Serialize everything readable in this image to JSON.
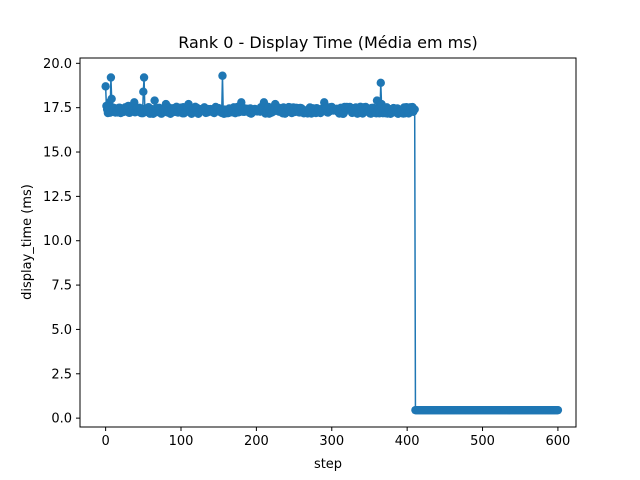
{
  "chart_data": {
    "type": "line",
    "title": "Rank 0 - Display Time (Média em ms)",
    "xlabel": "step",
    "ylabel": "display_time (ms)",
    "xlim": [
      -34,
      624
    ],
    "ylim": [
      -0.5,
      20.3
    ],
    "xticks": [
      0,
      100,
      200,
      300,
      400,
      500,
      600
    ],
    "yticks": [
      0.0,
      2.5,
      5.0,
      7.5,
      10.0,
      12.5,
      15.0,
      17.5,
      20.0
    ],
    "ytick_labels": [
      "0.0",
      "2.5",
      "5.0",
      "7.5",
      "10.0",
      "12.5",
      "15.0",
      "17.5",
      "20.0"
    ],
    "xtick_labels": [
      "0",
      "100",
      "200",
      "300",
      "400",
      "500",
      "600"
    ],
    "grid": false,
    "marker": "circle",
    "series": [
      {
        "color": "#1f77b4",
        "segments": [
          {
            "x_start": 0,
            "x_end": 410,
            "base": 17.35,
            "noise": 0.2
          },
          {
            "x_start": 411,
            "x_end": 600,
            "base": 0.45,
            "noise": 0.0
          }
        ],
        "points": [
          {
            "x": 0,
            "y": 18.7
          },
          {
            "x": 1,
            "y": 17.6
          },
          {
            "x": 3,
            "y": 17.2
          },
          {
            "x": 5,
            "y": 17.8
          },
          {
            "x": 7,
            "y": 19.2
          },
          {
            "x": 8,
            "y": 18.0
          },
          {
            "x": 10,
            "y": 17.5
          },
          {
            "x": 14,
            "y": 17.3
          },
          {
            "x": 30,
            "y": 17.6
          },
          {
            "x": 38,
            "y": 17.8
          },
          {
            "x": 50,
            "y": 18.4
          },
          {
            "x": 51,
            "y": 19.2
          },
          {
            "x": 65,
            "y": 17.9
          },
          {
            "x": 80,
            "y": 17.7
          },
          {
            "x": 110,
            "y": 17.7
          },
          {
            "x": 155,
            "y": 19.3
          },
          {
            "x": 180,
            "y": 17.8
          },
          {
            "x": 210,
            "y": 17.8
          },
          {
            "x": 225,
            "y": 17.7
          },
          {
            "x": 290,
            "y": 17.8
          },
          {
            "x": 360,
            "y": 17.9
          },
          {
            "x": 365,
            "y": 18.9
          },
          {
            "x": 366,
            "y": 17.7
          },
          {
            "x": 409,
            "y": 17.4
          },
          {
            "x": 410,
            "y": 17.4
          }
        ]
      }
    ]
  }
}
